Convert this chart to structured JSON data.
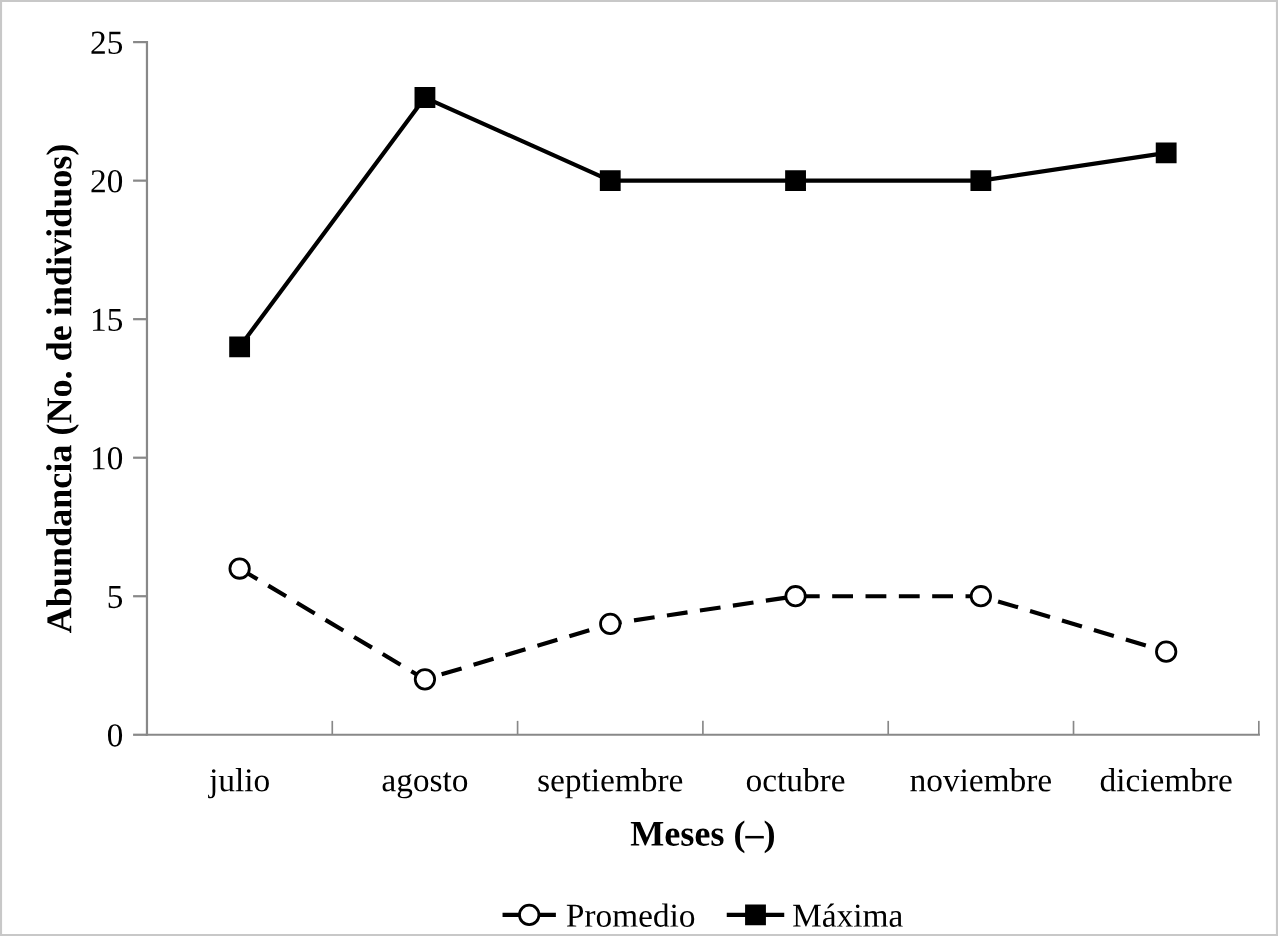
{
  "chart_data": {
    "type": "line",
    "xlabel": "Meses (–)",
    "ylabel": "Abundancia (No. de individuos)",
    "categories": [
      "julio",
      "agosto",
      "septiembre",
      "octubre",
      "noviembre",
      "diciembre"
    ],
    "series": [
      {
        "name": "Promedio",
        "color": "#000000",
        "marker": "circle",
        "line_style": "dashed",
        "values": [
          6,
          2,
          4,
          5,
          5,
          3
        ]
      },
      {
        "name": "Máxima",
        "color": "#000000",
        "marker": "square",
        "line_style": "solid",
        "values": [
          14,
          23,
          20,
          20,
          20,
          21
        ]
      }
    ],
    "ylim": [
      0,
      25
    ],
    "yticks": [
      0,
      5,
      10,
      15,
      20,
      25
    ],
    "grid": false,
    "legend": "bottom"
  }
}
